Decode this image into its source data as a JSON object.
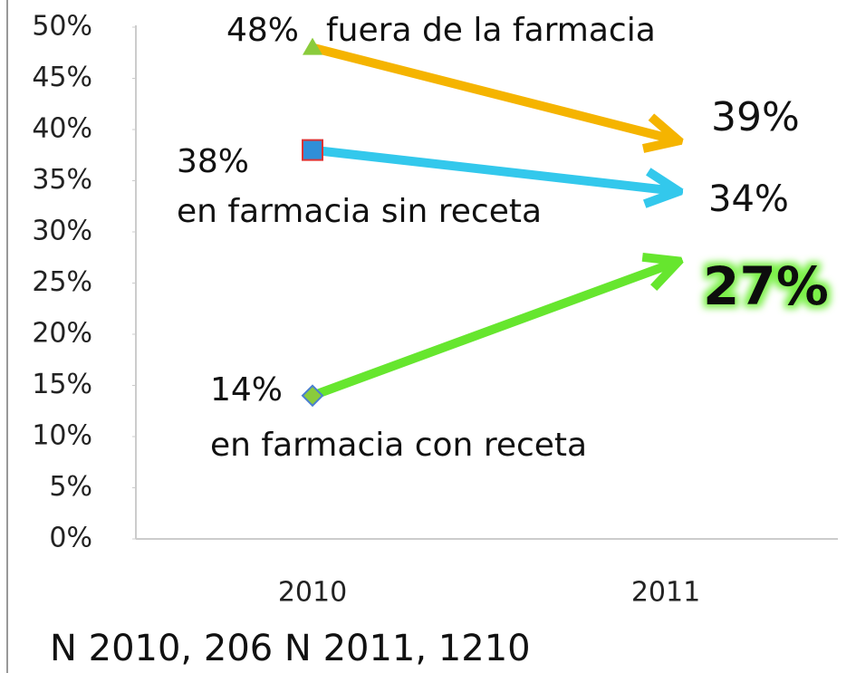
{
  "chart_data": {
    "type": "line",
    "categories": [
      "2010",
      "2011"
    ],
    "series": [
      {
        "name": "fuera de la farmacia",
        "color": "#f5b400",
        "values": [
          48,
          39
        ],
        "value_labels": [
          "48%",
          "39%"
        ]
      },
      {
        "name": "en farmacia sin receta",
        "color": "#33c8ec",
        "values": [
          38,
          34
        ],
        "value_labels": [
          "38%",
          "34%"
        ]
      },
      {
        "name": "en farmacia con receta",
        "color": "#66e62e",
        "values": [
          14,
          27
        ],
        "value_labels": [
          "14%",
          "27%"
        ]
      }
    ],
    "ylim": [
      0,
      50
    ],
    "yticks": [
      {
        "value": 0,
        "label": "0%"
      },
      {
        "value": 5,
        "label": "5%"
      },
      {
        "value": 10,
        "label": "10%"
      },
      {
        "value": 15,
        "label": "15%"
      },
      {
        "value": 20,
        "label": "20%"
      },
      {
        "value": 25,
        "label": "25%"
      },
      {
        "value": 30,
        "label": "30%"
      },
      {
        "value": 35,
        "label": "35%"
      },
      {
        "value": 40,
        "label": "40%"
      },
      {
        "value": 45,
        "label": "45%"
      },
      {
        "value": 50,
        "label": "50%"
      }
    ],
    "footnote": "N 2010,   206 N 2011, 1210"
  }
}
